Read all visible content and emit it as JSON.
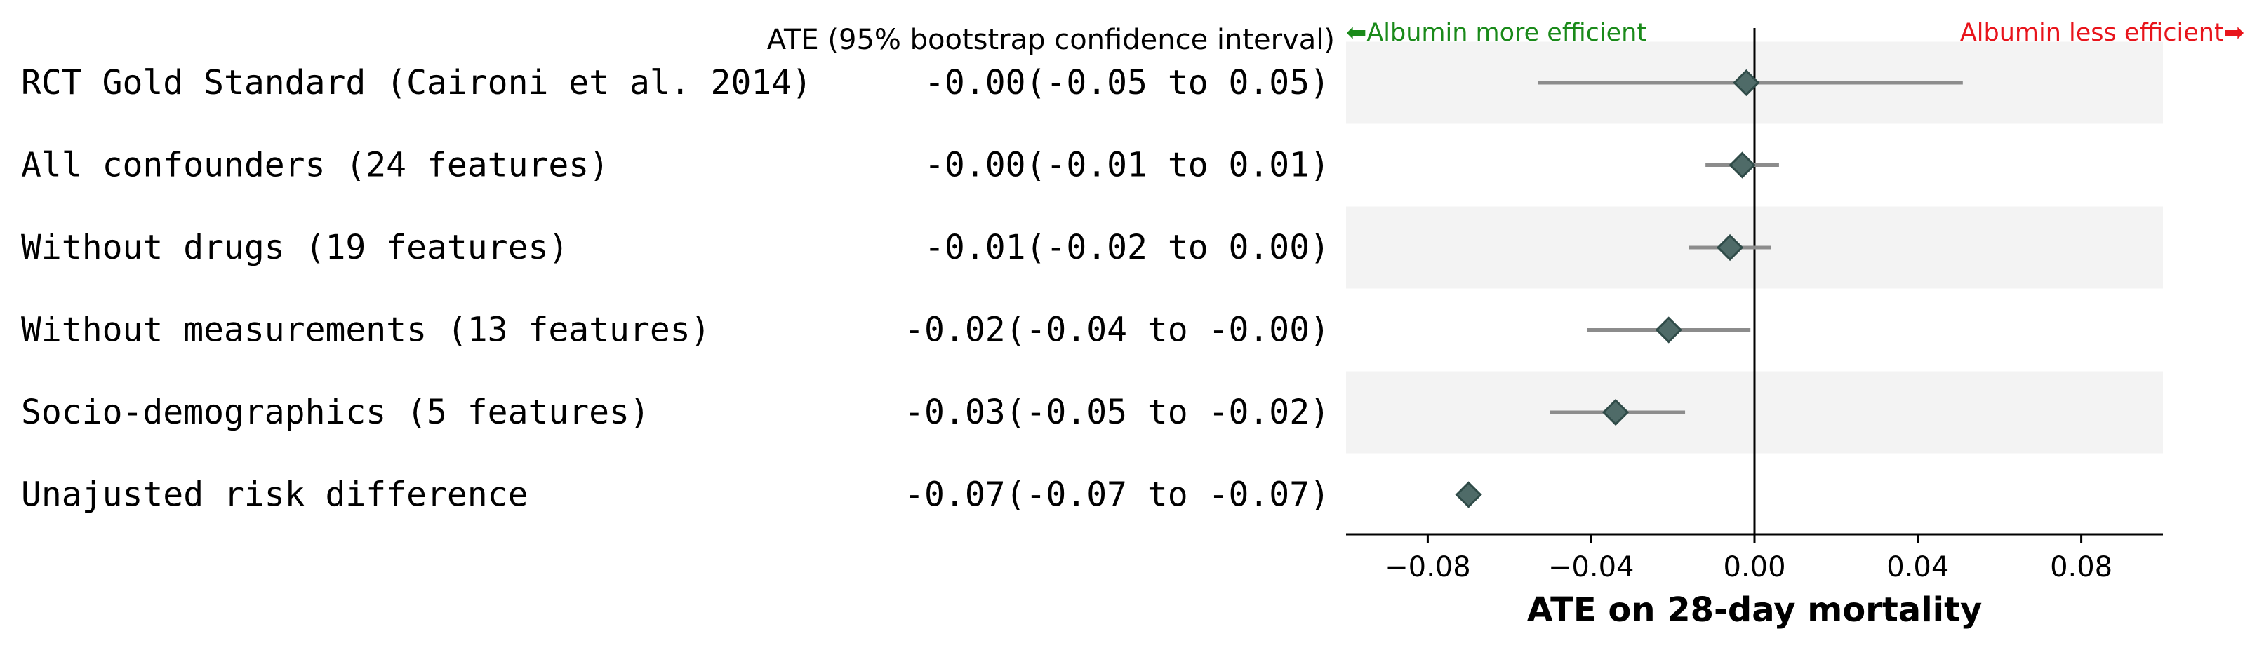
{
  "chart_data": {
    "type": "forest",
    "header": "ATE (95% bootstrap confidence interval)",
    "annotation_left": "⬅Albumin more efficient",
    "annotation_right": "Albumin less efficient➡",
    "xlabel": "ATE on 28-day mortality",
    "xlim": [
      -0.1,
      0.1
    ],
    "xticks": [
      "−0.08",
      "−0.04",
      "0.00",
      "0.04",
      "0.08"
    ],
    "xtick_values": [
      -0.08,
      -0.04,
      0.0,
      0.04,
      0.08
    ],
    "grid": false,
    "reference_line": 0,
    "colors": {
      "marker": "#4f6b68",
      "marker_edge": "#2f4b48",
      "ci_line": "#8c8c8c",
      "band": "#f3f3f3",
      "left_annotation": "#1a8a1a",
      "right_annotation": "#e8141b"
    },
    "rows": [
      {
        "label": "RCT Gold Standard (Caironi et al. 2014)",
        "estimate_text": "-0.00(-0.05 to  0.05)",
        "ate": -0.002,
        "ci": [
          -0.053,
          0.051
        ]
      },
      {
        "label": "All confounders (24 features)",
        "estimate_text": "-0.00(-0.01 to  0.01)",
        "ate": -0.003,
        "ci": [
          -0.012,
          0.006
        ]
      },
      {
        "label": "Without drugs (19 features)",
        "estimate_text": "-0.01(-0.02 to  0.00)",
        "ate": -0.006,
        "ci": [
          -0.016,
          0.004
        ]
      },
      {
        "label": "Without measurements (13 features)",
        "estimate_text": "-0.02(-0.04 to -0.00)",
        "ate": -0.021,
        "ci": [
          -0.041,
          -0.001
        ]
      },
      {
        "label": "Socio-demographics (5 features)",
        "estimate_text": "-0.03(-0.05 to -0.02)",
        "ate": -0.034,
        "ci": [
          -0.05,
          -0.017
        ]
      },
      {
        "label": "Unajusted risk difference",
        "estimate_text": "-0.07(-0.07 to -0.07)",
        "ate": -0.07,
        "ci": [
          -0.07,
          -0.07
        ]
      }
    ]
  }
}
